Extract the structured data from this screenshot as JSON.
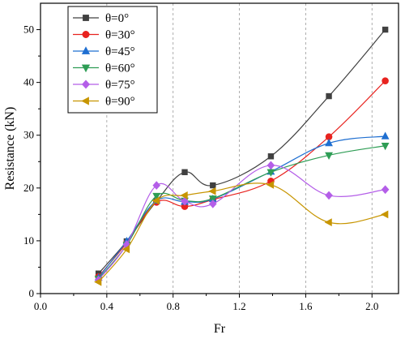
{
  "chart_data": {
    "type": "line",
    "title": "",
    "xlabel": "Fr",
    "ylabel": "Resistance (kN)",
    "xlim": [
      0.0,
      2.16
    ],
    "ylim": [
      0,
      55
    ],
    "xticks": [
      "0.0",
      "0.4",
      "0.8",
      "1.2",
      "1.6",
      "2.0"
    ],
    "yticks": [
      "0",
      "10",
      "20",
      "30",
      "40",
      "50"
    ],
    "vgrid_at": [
      0.4,
      0.8,
      1.2,
      1.6,
      2.0
    ],
    "grid": "vertical dashed",
    "legend_placement": "top-left",
    "x": [
      0.35,
      0.52,
      0.7,
      0.87,
      1.04,
      1.39,
      1.74,
      2.08
    ],
    "series": [
      {
        "name": "θ=0°",
        "color": "#404040",
        "marker": "square",
        "values": [
          3.8,
          9.9,
          17.5,
          23.0,
          20.5,
          26.0,
          37.4,
          50.0
        ]
      },
      {
        "name": "θ=30°",
        "color": "#e8231f",
        "marker": "circle",
        "values": [
          3.2,
          9.6,
          17.3,
          16.5,
          17.8,
          21.3,
          29.7,
          40.3
        ]
      },
      {
        "name": "θ=45°",
        "color": "#1f6fd1",
        "marker": "triangle-up",
        "values": [
          3.0,
          9.9,
          17.6,
          17.4,
          17.9,
          23.1,
          28.5,
          29.8
        ]
      },
      {
        "name": "θ=60°",
        "color": "#2e9d55",
        "marker": "triangle-down",
        "values": [
          2.8,
          9.2,
          18.5,
          17.6,
          18.0,
          23.0,
          26.2,
          28.0
        ]
      },
      {
        "name": "θ=75°",
        "color": "#b45ee8",
        "marker": "diamond",
        "values": [
          2.6,
          9.3,
          20.5,
          17.5,
          17.0,
          24.3,
          18.6,
          19.7
        ]
      },
      {
        "name": "θ=90°",
        "color": "#c79500",
        "marker": "triangle-left",
        "values": [
          2.2,
          8.4,
          17.6,
          18.6,
          19.4,
          20.6,
          13.5,
          15.0
        ]
      }
    ]
  }
}
